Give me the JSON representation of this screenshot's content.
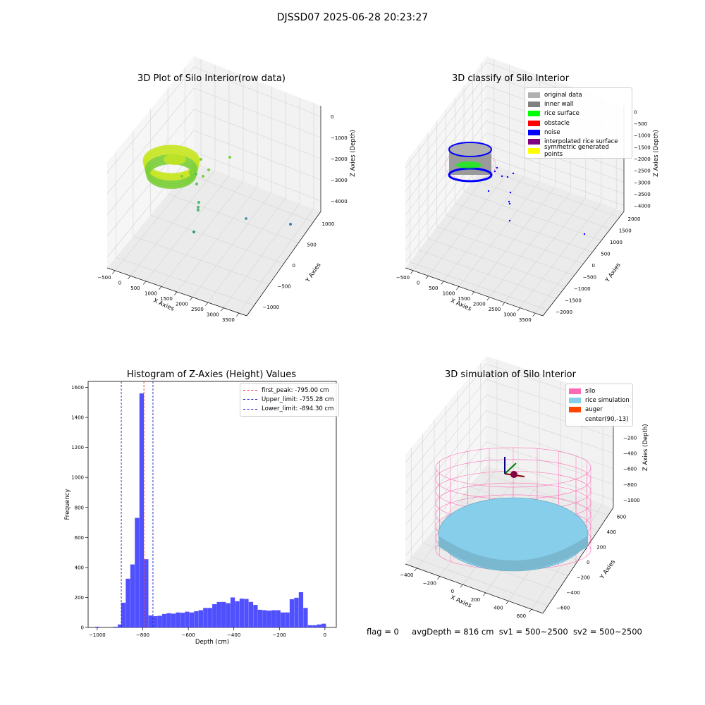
{
  "suptitle": "DJSSD07 2025-06-28 20:23:27",
  "footer": {
    "flag": "flag = 0",
    "avg_depth": "avgDepth = 816 cm",
    "sv1": "sv1 = 500~2500",
    "sv2": "sv2 = 500~2500"
  },
  "colors": {
    "hist_bar": "#5050ff",
    "first_peak": "#ff2020",
    "limit": "#2020c0",
    "silo": "#ff69b4",
    "rice_sim": "#87ceeb",
    "auger": "#ff4500"
  },
  "chart_data": [
    {
      "type": "scatter",
      "title": "3D Plot of Silo Interior(row data)",
      "xlabel": "X Axies",
      "ylabel": "Y Axies",
      "zlabel": "Z Axies (Depth)",
      "x_ticks": [
        "−500",
        "0",
        "500",
        "1000",
        "1500",
        "2000",
        "2500",
        "3000",
        "3500"
      ],
      "y_ticks": [
        "−1000",
        "−500",
        "0",
        "500",
        "1000"
      ],
      "z_ticks": [
        "−4000",
        "−3000",
        "−2000",
        "−1000",
        "0"
      ]
    },
    {
      "type": "scatter",
      "title": "3D classify of Silo Interior",
      "xlabel": "X Axies",
      "ylabel": "Y Axies",
      "zlabel": "Z Axies (Depth)",
      "x_ticks": [
        "−500",
        "0",
        "500",
        "1000",
        "1500",
        "2000",
        "2500",
        "3000",
        "3500"
      ],
      "y_ticks": [
        "−2000",
        "−1500",
        "−1000",
        "−500",
        "0",
        "500",
        "1000",
        "1500",
        "2000"
      ],
      "z_ticks": [
        "−4000",
        "−3500",
        "−3000",
        "−2500",
        "−2000",
        "−1500",
        "−1000",
        "−500",
        "0"
      ],
      "legend": [
        {
          "label": "original data",
          "color": "#b0b0b0"
        },
        {
          "label": "inner wall",
          "color": "#808080"
        },
        {
          "label": "rice surface",
          "color": "#00ff00"
        },
        {
          "label": "obstacle",
          "color": "#ff0000"
        },
        {
          "label": "noise",
          "color": "#0000ff"
        },
        {
          "label": "interpolated rice surface",
          "color": "#800080"
        },
        {
          "label": "symmetric generated points",
          "color": "#ffff00"
        }
      ]
    },
    {
      "type": "bar",
      "title": "Histogram of Z-Axies (Height) Values",
      "xlabel": "Depth (cm)",
      "ylabel": "Frequency",
      "xlim": [
        -1040,
        50
      ],
      "ylim": [
        0,
        1640
      ],
      "x_ticks": [
        -1000,
        -800,
        -600,
        -400,
        -200,
        0
      ],
      "x_tick_labels": [
        "−1000",
        "−800",
        "−600",
        "−400",
        "−200",
        "0"
      ],
      "y_ticks": [
        0,
        200,
        400,
        600,
        800,
        1000,
        1200,
        1400,
        1600
      ],
      "bin_width": 19.5,
      "bins": [
        {
          "x": -1000,
          "y": 5
        },
        {
          "x": -920,
          "y": 5
        },
        {
          "x": -900,
          "y": 20
        },
        {
          "x": -885,
          "y": 165
        },
        {
          "x": -865,
          "y": 325
        },
        {
          "x": -845,
          "y": 420
        },
        {
          "x": -825,
          "y": 730
        },
        {
          "x": -805,
          "y": 1560
        },
        {
          "x": -785,
          "y": 455
        },
        {
          "x": -765,
          "y": 80
        },
        {
          "x": -745,
          "y": 75
        },
        {
          "x": -725,
          "y": 78
        },
        {
          "x": -705,
          "y": 90
        },
        {
          "x": -685,
          "y": 95
        },
        {
          "x": -665,
          "y": 92
        },
        {
          "x": -645,
          "y": 100
        },
        {
          "x": -625,
          "y": 98
        },
        {
          "x": -605,
          "y": 105
        },
        {
          "x": -585,
          "y": 100
        },
        {
          "x": -565,
          "y": 108
        },
        {
          "x": -545,
          "y": 115
        },
        {
          "x": -525,
          "y": 130
        },
        {
          "x": -505,
          "y": 130
        },
        {
          "x": -485,
          "y": 155
        },
        {
          "x": -465,
          "y": 170
        },
        {
          "x": -445,
          "y": 170
        },
        {
          "x": -425,
          "y": 162
        },
        {
          "x": -405,
          "y": 200
        },
        {
          "x": -385,
          "y": 175
        },
        {
          "x": -365,
          "y": 192
        },
        {
          "x": -345,
          "y": 190
        },
        {
          "x": -325,
          "y": 170
        },
        {
          "x": -305,
          "y": 150
        },
        {
          "x": -285,
          "y": 118
        },
        {
          "x": -265,
          "y": 115
        },
        {
          "x": -245,
          "y": 112
        },
        {
          "x": -225,
          "y": 115
        },
        {
          "x": -205,
          "y": 115
        },
        {
          "x": -185,
          "y": 100
        },
        {
          "x": -165,
          "y": 100
        },
        {
          "x": -145,
          "y": 188
        },
        {
          "x": -125,
          "y": 198
        },
        {
          "x": -105,
          "y": 235
        },
        {
          "x": -85,
          "y": 130
        },
        {
          "x": -65,
          "y": 15
        },
        {
          "x": -45,
          "y": 15
        },
        {
          "x": -25,
          "y": 20
        },
        {
          "x": -5,
          "y": 25
        }
      ],
      "lines": [
        {
          "label": "first_peak: -795.00 cm",
          "x": -795.0,
          "color": "#ff2020"
        },
        {
          "label": "Upper_limit: -755.28 cm",
          "x": -755.28,
          "color": "#2020c0"
        },
        {
          "label": "Lower_limit: -894.30 cm",
          "x": -894.3,
          "color": "#2020c0"
        }
      ]
    },
    {
      "type": "scatter",
      "title": "3D simulation of Silo Interior",
      "xlabel": "X Axies",
      "ylabel": "Y Axies",
      "zlabel": "Z Axies (Depth)",
      "x_ticks": [
        "−400",
        "−200",
        "0",
        "200",
        "400",
        "600"
      ],
      "y_ticks": [
        "−600",
        "−400",
        "−200",
        "0",
        "200",
        "400",
        "600"
      ],
      "z_ticks": [
        "−1000",
        "−800",
        "−600",
        "−400",
        "−200",
        "0",
        "200"
      ],
      "legend": [
        {
          "label": "silo",
          "color": "#ff69b4"
        },
        {
          "label": "rice simulation",
          "color": "#87ceeb"
        },
        {
          "label": "auger",
          "color": "#ff4500"
        },
        {
          "label": "center(90,-13)",
          "color": ""
        }
      ]
    }
  ]
}
